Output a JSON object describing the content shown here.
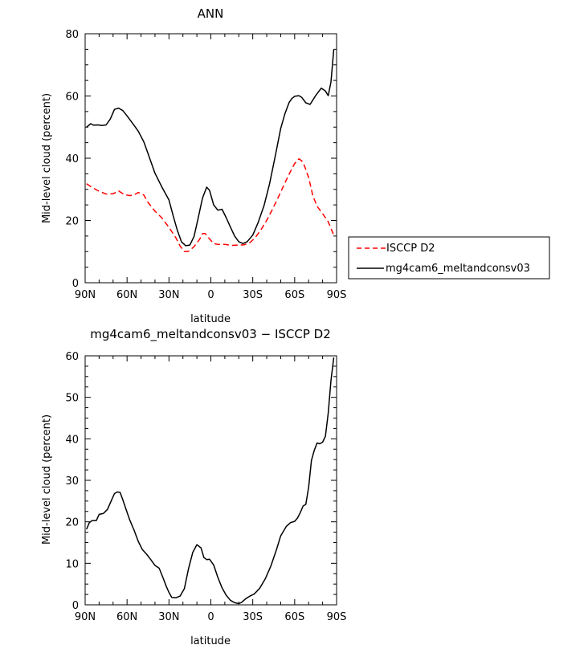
{
  "chart_data": [
    {
      "type": "line",
      "title": "ANN",
      "xlabel": "latitude",
      "ylabel": "Mid-level cloud (percent)",
      "xlim": [
        -90,
        90
      ],
      "ylim": [
        0,
        80
      ],
      "x_ticks": [
        {
          "value": -90,
          "label": "90N"
        },
        {
          "value": -60,
          "label": "60N"
        },
        {
          "value": -30,
          "label": "30N"
        },
        {
          "value": 0,
          "label": "0"
        },
        {
          "value": 30,
          "label": "30S"
        },
        {
          "value": 60,
          "label": "60S"
        },
        {
          "value": 90,
          "label": "90S"
        }
      ],
      "y_ticks": [
        0,
        20,
        40,
        60,
        80
      ],
      "legend": "right",
      "series": [
        {
          "name": "ISCCP D2",
          "color": "#ff0000",
          "dash": true,
          "x": [
            -89,
            -85,
            -80,
            -75,
            -70,
            -66,
            -62,
            -58,
            -55,
            -52,
            -48,
            -45,
            -40,
            -35,
            -30,
            -25,
            -22,
            -19,
            -16,
            -12,
            -8,
            -6,
            -4,
            -1,
            2,
            5,
            10,
            15,
            20,
            24,
            28,
            32,
            36,
            40,
            44,
            48,
            52,
            56,
            60,
            63,
            65,
            67,
            70,
            73,
            76,
            80,
            84,
            88
          ],
          "y": [
            31.8,
            30.6,
            29.4,
            28.5,
            28.6,
            29.5,
            28.3,
            28.0,
            28.2,
            29.0,
            28.2,
            25.8,
            23.0,
            20.8,
            17.8,
            14.4,
            11.8,
            10.0,
            10.1,
            11.6,
            14.0,
            15.8,
            15.8,
            14.1,
            12.6,
            12.3,
            12.3,
            12.0,
            12.1,
            12.2,
            12.9,
            14.6,
            17.1,
            20.1,
            23.5,
            27.2,
            31.1,
            34.9,
            38.3,
            39.8,
            39.2,
            37.6,
            33.8,
            28.0,
            24.6,
            22.2,
            19.6,
            15.3
          ]
        },
        {
          "name": "mg4cam6_meltandconsv03",
          "color": "#000000",
          "dash": false,
          "x": [
            -89,
            -86,
            -84,
            -81,
            -78,
            -75,
            -72,
            -69,
            -66,
            -63,
            -60,
            -56,
            -52,
            -48,
            -45,
            -40,
            -35,
            -30,
            -27,
            -24,
            -21,
            -18,
            -15,
            -12,
            -9,
            -6,
            -3,
            -1,
            2,
            5,
            8,
            11,
            14,
            17,
            20,
            23,
            26,
            30,
            34,
            38,
            42,
            46,
            50,
            53,
            56,
            58,
            60,
            63,
            65,
            68,
            71,
            75,
            79,
            82,
            84,
            86,
            88
          ],
          "y": [
            50.0,
            51.1,
            50.6,
            50.7,
            50.5,
            50.7,
            52.6,
            55.7,
            56.1,
            55.3,
            53.6,
            51.2,
            48.7,
            45.3,
            41.5,
            35.2,
            30.7,
            26.6,
            21.5,
            16.8,
            13.1,
            11.9,
            12.1,
            14.9,
            20.9,
            27.2,
            30.7,
            29.7,
            25.0,
            23.3,
            23.6,
            20.9,
            17.9,
            15.0,
            13.2,
            12.6,
            13.2,
            15.3,
            19.5,
            24.7,
            31.7,
            40.5,
            49.5,
            54.3,
            57.9,
            59.2,
            59.9,
            60.1,
            59.6,
            57.8,
            57.3,
            60.1,
            62.5,
            61.6,
            60.1,
            64.5,
            74.9
          ]
        }
      ]
    },
    {
      "type": "line",
      "title": "mg4cam6_meltandconsv03 − ISCCP D2",
      "xlabel": "latitude",
      "ylabel": "Mid-level cloud (percent)",
      "xlim": [
        -90,
        90
      ],
      "ylim": [
        0,
        60
      ],
      "x_ticks": [
        {
          "value": -90,
          "label": "90N"
        },
        {
          "value": -60,
          "label": "60N"
        },
        {
          "value": -30,
          "label": "30N"
        },
        {
          "value": 0,
          "label": "0"
        },
        {
          "value": 30,
          "label": "30S"
        },
        {
          "value": 60,
          "label": "60S"
        },
        {
          "value": 90,
          "label": "90S"
        }
      ],
      "y_ticks": [
        0,
        10,
        20,
        30,
        40,
        50,
        60
      ],
      "series": [
        {
          "name": "",
          "color": "#000000",
          "dash": false,
          "x": [
            -89,
            -87,
            -85,
            -82,
            -80,
            -77,
            -74,
            -71,
            -69,
            -67,
            -65,
            -63,
            -61,
            -58,
            -55,
            -52,
            -49,
            -46,
            -43,
            -40,
            -37,
            -34,
            -32,
            -30,
            -28,
            -25,
            -22,
            -19,
            -16,
            -13,
            -10,
            -7,
            -5,
            -3,
            -1,
            2,
            5,
            8,
            11,
            14,
            17,
            20,
            22,
            25,
            28,
            31,
            35,
            39,
            43,
            47,
            50,
            54,
            57,
            60,
            62,
            64,
            66,
            68,
            70,
            72,
            74,
            76,
            78,
            80,
            82,
            84,
            86,
            88
          ],
          "y": [
            18.2,
            19.8,
            20.3,
            20.3,
            21.8,
            22.0,
            23.0,
            25.3,
            26.8,
            27.2,
            27.1,
            25.3,
            23.3,
            20.4,
            18.0,
            15.3,
            13.3,
            12.2,
            10.9,
            9.5,
            8.8,
            6.3,
            4.5,
            3.0,
            1.8,
            1.7,
            2.1,
            3.9,
            8.7,
            12.6,
            14.5,
            13.7,
            11.4,
            10.9,
            11.0,
            9.6,
            6.6,
            4.1,
            2.3,
            1.1,
            0.5,
            0.3,
            0.6,
            1.5,
            2.1,
            2.6,
            4.0,
            6.3,
            9.4,
            13.3,
            16.6,
            18.9,
            19.8,
            20.1,
            20.9,
            22.2,
            23.8,
            24.2,
            28.3,
            34.8,
            37.2,
            39.0,
            38.8,
            39.2,
            40.6,
            46.2,
            54.0,
            59.6
          ]
        }
      ]
    }
  ]
}
